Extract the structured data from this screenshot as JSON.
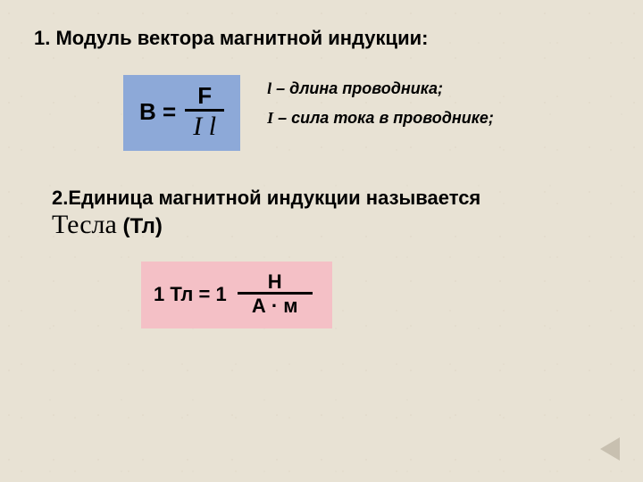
{
  "slide": {
    "background_color": "#e8e2d4",
    "heading1_prefix": "1. ",
    "heading1": "Модуль вектора магнитной индукции:",
    "formula1": {
      "box_color": "#8da9d8",
      "lhs": "В  =",
      "numerator": "F",
      "denominator": "I l",
      "line_color": "#000000"
    },
    "definitions": {
      "d1_sym": "l",
      "d1_text": " – длина проводника;",
      "d2_sym": "I",
      "d2_text": " – сила тока в проводнике;"
    },
    "heading2_prefix": "2.",
    "heading2_part1": "Единица магнитной индукции   называется",
    "heading2_tesla": "Тесла",
    "heading2_abbr": " (Тл)",
    "formula2": {
      "box_color": "#f4c0c6",
      "lhs": "1 Тл = 1",
      "numerator": "Н",
      "denominator": "А · м",
      "line_color": "#000000"
    },
    "nav_triangle_color": "#c8c0b0"
  }
}
